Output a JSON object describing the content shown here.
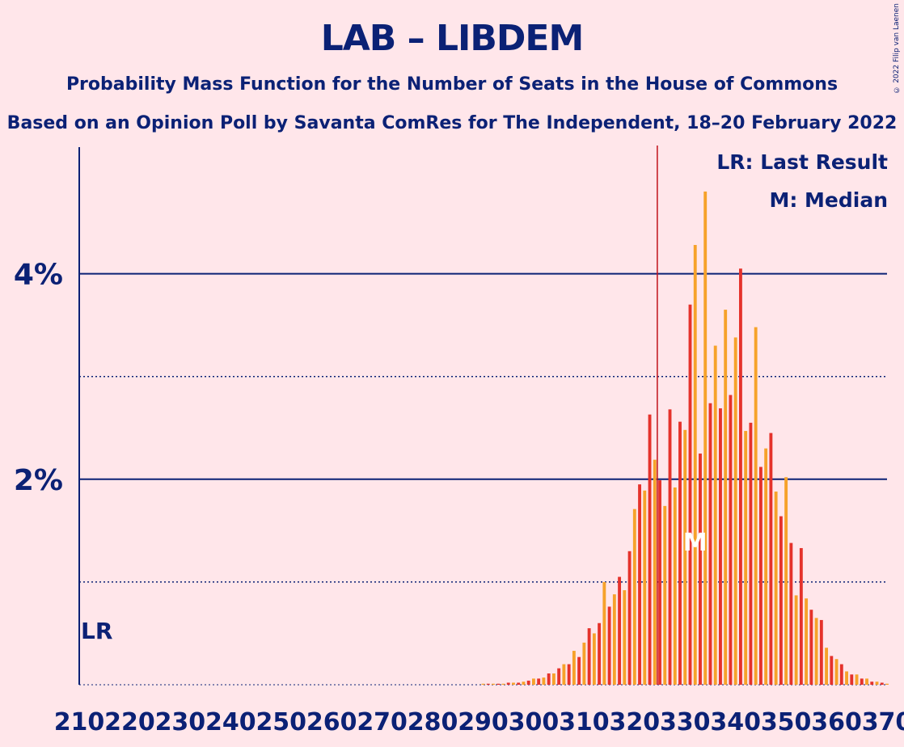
{
  "title": "LAB – LIBDEM",
  "subtitle": "Probability Mass Function for the Number of Seats in the House of Commons",
  "subtitle2": "Based on an Opinion Poll by Savanta ComRes for The Independent, 18–20 February 2022",
  "copyright": "© 2022 Filip van Laenen",
  "legend": {
    "last_result": "LR: Last Result",
    "median": "M: Median"
  },
  "lr_marker_label": "LR",
  "median_marker_label": "M",
  "colors": {
    "background": "#FFE6EA",
    "text": "#0B2175",
    "bar_odd": "#E5322B",
    "bar_even": "#F6A22A",
    "last_result_line": "#C0101A",
    "gridline": "#0B2175"
  },
  "chart_data": {
    "type": "bar",
    "x_start": 210,
    "x_end": 370,
    "x_tick_labels": [
      "210",
      "220",
      "230",
      "240",
      "250",
      "260",
      "270",
      "280",
      "290",
      "300",
      "310",
      "320",
      "330",
      "340",
      "350",
      "360",
      "370"
    ],
    "y_tick_labels": [
      "2%",
      "4%"
    ],
    "y_major_ticks": [
      2,
      4
    ],
    "y_minor_ticks": [
      1,
      3
    ],
    "ylim": [
      0,
      5.2
    ],
    "unit": "%",
    "last_result_x": 210,
    "last_result_line_x": 325,
    "median_x": 332,
    "median_label_value": 1.4,
    "x": [
      290,
      291,
      292,
      293,
      294,
      295,
      296,
      297,
      298,
      299,
      300,
      301,
      302,
      303,
      304,
      305,
      306,
      307,
      308,
      309,
      310,
      311,
      312,
      313,
      314,
      315,
      316,
      317,
      318,
      319,
      320,
      321,
      322,
      323,
      324,
      325,
      326,
      327,
      328,
      329,
      330,
      331,
      332,
      333,
      334,
      335,
      336,
      337,
      338,
      339,
      340,
      341,
      342,
      343,
      344,
      345,
      346,
      347,
      348,
      349,
      350,
      351,
      352,
      353,
      354,
      355,
      356,
      357,
      358,
      359,
      360,
      361,
      362,
      363,
      364,
      365,
      366,
      367,
      368,
      369,
      370
    ],
    "values": [
      0.01,
      0.01,
      0.01,
      0.01,
      0.01,
      0.02,
      0.02,
      0.02,
      0.03,
      0.04,
      0.06,
      0.06,
      0.07,
      0.11,
      0.11,
      0.16,
      0.2,
      0.2,
      0.33,
      0.27,
      0.41,
      0.55,
      0.5,
      0.6,
      1.0,
      0.76,
      0.88,
      1.05,
      0.92,
      1.3,
      1.71,
      1.95,
      1.89,
      2.63,
      2.19,
      1.99,
      1.74,
      2.68,
      1.92,
      2.56,
      2.48,
      3.7,
      4.28,
      2.25,
      4.8,
      2.74,
      3.3,
      2.69,
      3.65,
      2.82,
      3.38,
      4.05,
      2.47,
      2.55,
      3.48,
      2.12,
      2.3,
      2.45,
      1.88,
      1.64,
      2.02,
      1.38,
      0.87,
      1.33,
      0.84,
      0.73,
      0.65,
      0.63,
      0.36,
      0.28,
      0.25,
      0.2,
      0.13,
      0.1,
      0.1,
      0.06,
      0.06,
      0.03,
      0.03,
      0.02,
      0.01
    ]
  }
}
